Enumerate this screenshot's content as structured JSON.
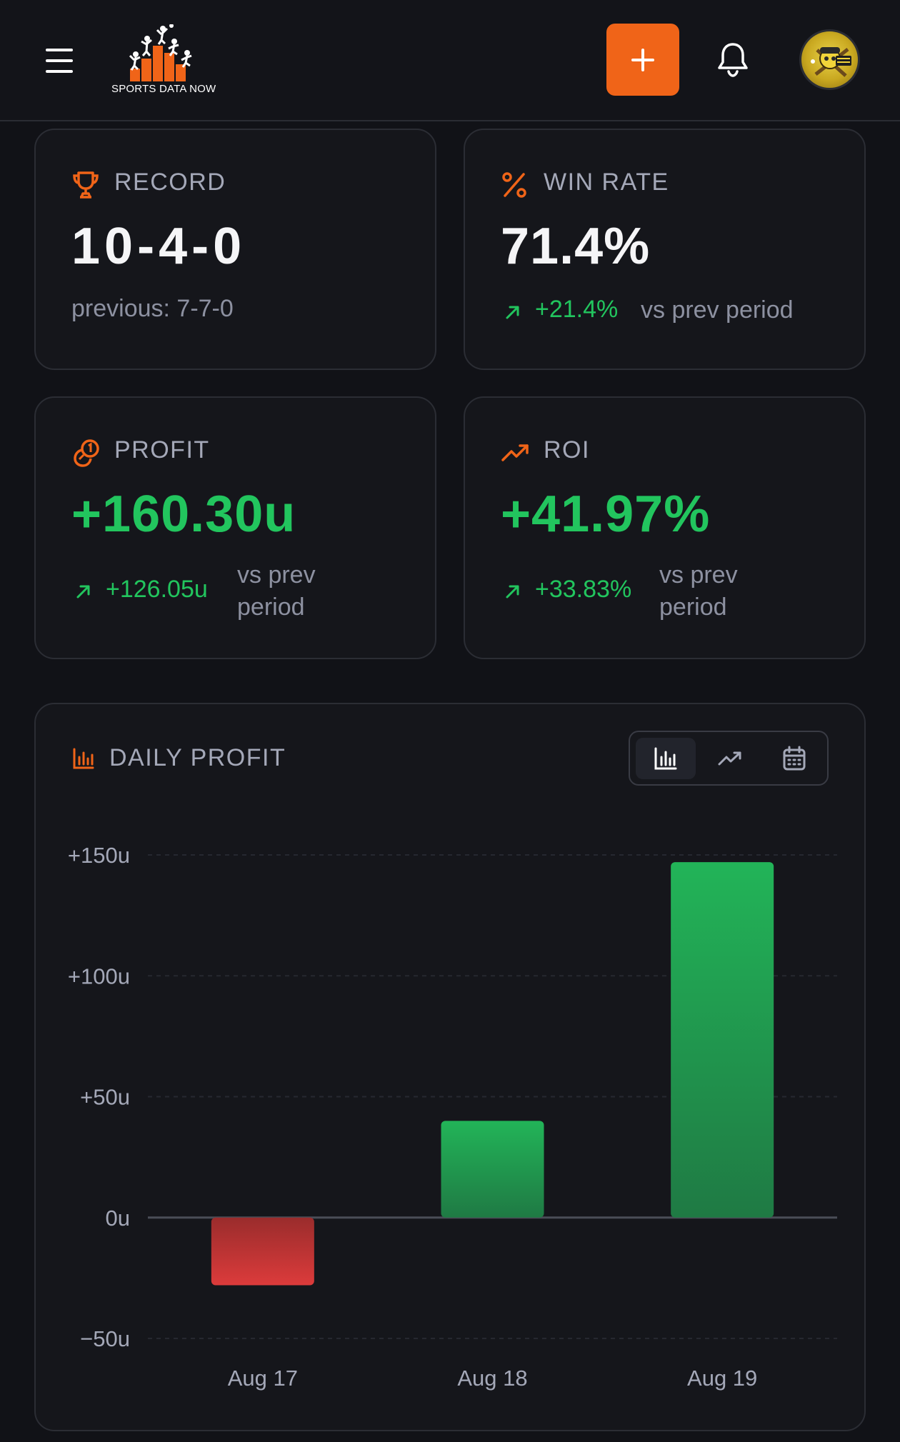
{
  "header": {
    "logo_text": "SPORTS DATA NOW",
    "add_label": "+",
    "icons": {
      "menu": "hamburger-icon",
      "bell": "bell-icon",
      "avatar": "avatar"
    }
  },
  "colors": {
    "accent": "#f06418",
    "positive": "#22c55e",
    "negative": "#dc3b3b",
    "card_bg": "#15161b",
    "page_bg": "#111217"
  },
  "stats": {
    "record": {
      "label": "RECORD",
      "value": "10-4-0",
      "previous": "previous: 7-7-0",
      "icon": "trophy-icon"
    },
    "win_rate": {
      "label": "WIN RATE",
      "value": "71.4%",
      "delta": "+21.4%",
      "delta_suffix": "vs prev period",
      "icon": "percent-icon"
    },
    "profit": {
      "label": "PROFIT",
      "value": "+160.30u",
      "delta": "+126.05u",
      "delta_suffix_1": "vs prev",
      "delta_suffix_2": "period",
      "icon": "coins-icon"
    },
    "roi": {
      "label": "ROI",
      "value": "+41.97%",
      "delta": "+33.83%",
      "delta_suffix_1": "vs prev",
      "delta_suffix_2": "period",
      "icon": "trending-up-icon"
    }
  },
  "daily_profit": {
    "title": "DAILY PROFIT",
    "icon": "bar-chart-icon",
    "view_toggle": {
      "options": [
        "bar-chart-icon",
        "line-chart-icon",
        "calendar-icon"
      ],
      "selected": "bar-chart-icon"
    }
  },
  "chart_data": {
    "type": "bar",
    "title": "DAILY PROFIT",
    "categories": [
      "Aug 17",
      "Aug 18",
      "Aug 19"
    ],
    "values": [
      -28,
      40,
      147
    ],
    "ylim": [
      -50,
      150
    ],
    "yticks": [
      "+150u",
      "+100u",
      "+50u",
      "0u",
      "−50u"
    ],
    "ytick_values": [
      150,
      100,
      50,
      0,
      -50
    ],
    "grid": true,
    "xlabel": "",
    "ylabel": ""
  }
}
